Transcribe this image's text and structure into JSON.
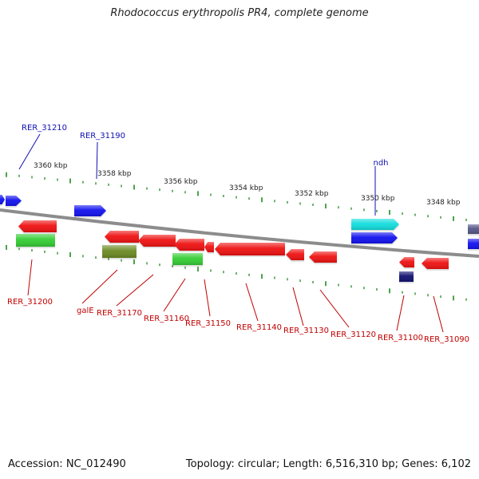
{
  "title": "Rhodococcus erythropolis PR4, complete genome",
  "footer": {
    "accession": "Accession: NC_012490",
    "stats": "Topology: circular; Length: 6,516,310 bp; Genes: 6,102"
  },
  "colors": {
    "backbone": "#8c8c8c",
    "tick": "#1e8c1e",
    "forward_label": "#1010b0",
    "reverse_label": "#c00000",
    "red": "#ee1111",
    "blue": "#1111ee",
    "green": "#33cc33",
    "olive": "#6b8a22",
    "cyan": "#11dddd",
    "navy": "#101070",
    "slate": "#555588"
  },
  "scale": {
    "unit": "kbp",
    "labels": [
      "3360 kbp",
      "3358 kbp",
      "3356 kbp",
      "3354 kbp",
      "3352 kbp",
      "3350 kbp",
      "3348 kbp"
    ]
  },
  "forward_labels": [
    "RER_31210",
    "RER_31190",
    "ndh"
  ],
  "reverse_labels": [
    "RER_31200",
    "galE",
    "RER_31170",
    "RER_31160",
    "RER_31150",
    "RER_31140",
    "RER_31130",
    "RER_31120",
    "RER_31100",
    "RER_31090"
  ]
}
